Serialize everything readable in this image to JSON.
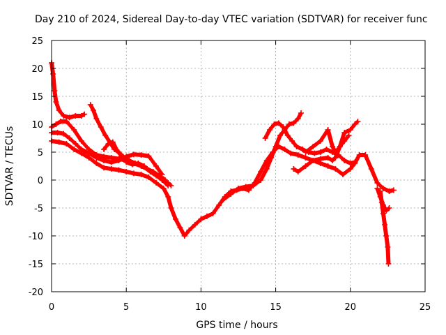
{
  "chart_data": {
    "type": "scatter",
    "title": "Day 210 of 2024, Sidereal Day-to-day VTEC variation (SDTVAR) for receiver func",
    "xlabel": "GPS time / hours",
    "ylabel": "SDTVAR / TECUs",
    "xlim": [
      0,
      25
    ],
    "ylim": [
      -20,
      25
    ],
    "xticks": [
      0,
      5,
      10,
      15,
      20,
      25
    ],
    "yticks": [
      -20,
      -15,
      -10,
      -5,
      0,
      5,
      10,
      15,
      20,
      25
    ],
    "grid": true,
    "marker": "+",
    "series": [
      {
        "name": "track-1",
        "color": "#ff0000",
        "x": [
          0.0,
          0.1,
          0.2,
          0.3,
          0.5,
          0.8,
          1.2,
          1.6,
          2.0,
          2.2
        ],
        "y": [
          21,
          19,
          16,
          14,
          12.5,
          11.5,
          11.2,
          11.5,
          11.5,
          11.8
        ]
      },
      {
        "name": "track-2",
        "color": "#ff0000",
        "x": [
          0.0,
          0.3,
          0.6,
          1.0,
          1.5,
          2.0,
          2.5,
          3.0,
          3.5,
          4.0,
          4.5,
          5.0,
          5.5,
          6.0,
          6.5,
          7.0,
          7.5,
          7.8
        ],
        "y": [
          9.5,
          10,
          10.5,
          10.5,
          9,
          7,
          5.5,
          4.5,
          4.2,
          4,
          3.8,
          3.5,
          3,
          2.5,
          1.8,
          1,
          0.2,
          -0.5
        ]
      },
      {
        "name": "track-3",
        "color": "#ff0000",
        "x": [
          0.0,
          0.4,
          0.8,
          1.2,
          1.6,
          2.0,
          2.5,
          3.0,
          3.5,
          4.0,
          4.5,
          5.0,
          5.5,
          6.0,
          6.5,
          7.0,
          7.4
        ],
        "y": [
          8.5,
          8.5,
          8.3,
          7.5,
          6.5,
          5.5,
          4.8,
          4,
          3.5,
          3.2,
          3.5,
          4.2,
          4.6,
          4.5,
          4.3,
          2.5,
          1
        ]
      },
      {
        "name": "track-4",
        "color": "#ff0000",
        "x": [
          0.0,
          0.5,
          1.0,
          1.5,
          2.0,
          2.5,
          3.0,
          3.5,
          4.0,
          4.5,
          5.0,
          5.5,
          6.0,
          6.5,
          7.0,
          7.5,
          7.8,
          8.0,
          8.3,
          8.6,
          8.9,
          9.2,
          9.6,
          10.0,
          10.4,
          10.8,
          11.2,
          11.6,
          12.0,
          12.4,
          12.8,
          13.2,
          13.6,
          14.0,
          14.4,
          14.8,
          15.2,
          15.6,
          16.0,
          16.5,
          17.0,
          17.5,
          18.0,
          18.5,
          19.0,
          19.5,
          20.0,
          20.3,
          20.6,
          21.0,
          21.4,
          21.8,
          22.2,
          22.6,
          22.9
        ],
        "y": [
          7,
          6.8,
          6.5,
          5.5,
          4.8,
          4,
          3,
          2.2,
          2,
          1.8,
          1.5,
          1.2,
          1,
          0.5,
          -0.5,
          -1.5,
          -3,
          -5,
          -7,
          -8.5,
          -10,
          -9,
          -8,
          -7,
          -6.5,
          -6,
          -4.5,
          -3,
          -2,
          -1.8,
          -1.5,
          -1.8,
          -0.5,
          1.5,
          3.5,
          5,
          6,
          5.5,
          4.8,
          4.5,
          4,
          3.5,
          3,
          2.5,
          2,
          1,
          2,
          3,
          4.5,
          4.5,
          2,
          -0.5,
          -1.5,
          -2,
          -1.8
        ]
      },
      {
        "name": "track-5",
        "color": "#ff0000",
        "x": [
          2.6,
          2.8,
          3.0,
          3.3,
          3.6,
          3.9,
          4.2,
          4.5,
          4.8,
          5.2,
          5.6,
          6.0,
          6.4,
          6.8,
          7.2,
          7.6,
          8.0
        ],
        "y": [
          13.5,
          12.5,
          11,
          9.5,
          8,
          6.8,
          5.5,
          5,
          4.2,
          3.5,
          3,
          2.5,
          2,
          1.5,
          0.8,
          0,
          -1
        ]
      },
      {
        "name": "track-6",
        "color": "#ff0000",
        "x": [
          3.5,
          3.8,
          4.1,
          4.4,
          4.7,
          5.0,
          5.4,
          5.8,
          6.2,
          6.6,
          7.0,
          7.4,
          7.8
        ],
        "y": [
          5.5,
          6.5,
          6.8,
          5.2,
          4.2,
          3.2,
          2.8,
          3,
          2.5,
          1.5,
          0.8,
          0,
          -1
        ]
      },
      {
        "name": "track-7",
        "color": "#ff0000",
        "x": [
          11.5,
          12.0,
          12.5,
          13.0,
          13.5,
          14.0,
          14.4,
          14.7,
          15.0,
          15.3,
          15.6,
          15.9,
          16.2,
          16.5,
          16.7
        ],
        "y": [
          -3.5,
          -2.5,
          -1.5,
          -1.2,
          -1,
          0,
          2,
          4,
          6,
          8,
          9,
          10,
          10.2,
          11,
          12
        ]
      },
      {
        "name": "track-8",
        "color": "#ff0000",
        "x": [
          14.3,
          14.6,
          14.9,
          15.2,
          15.5,
          15.8,
          16.1,
          16.4,
          16.8,
          17.2,
          17.6,
          18.0,
          18.4,
          18.8,
          19.2,
          19.6,
          20.0,
          20.3
        ],
        "y": [
          7.5,
          9,
          10,
          10.2,
          9.5,
          8,
          7,
          6,
          5.5,
          5,
          4.8,
          5,
          5.5,
          5,
          4.5,
          3.5,
          3,
          3.2
        ]
      },
      {
        "name": "track-9",
        "color": "#ff0000",
        "x": [
          16.2,
          16.5,
          17.0,
          17.5,
          18.0,
          18.5,
          18.8,
          19.0,
          19.3,
          19.6,
          20.0,
          20.3,
          20.5
        ],
        "y": [
          2,
          1.5,
          2.5,
          3.5,
          3.8,
          4,
          3.5,
          4,
          6,
          8.5,
          9,
          10,
          10.5
        ]
      },
      {
        "name": "track-10",
        "color": "#ff0000",
        "x": [
          17.0,
          17.5,
          18.0,
          18.5,
          18.8,
          19.0,
          19.3,
          19.6,
          19.9
        ],
        "y": [
          5,
          6,
          7,
          9,
          6,
          5,
          6,
          7,
          8
        ]
      },
      {
        "name": "track-11",
        "color": "#ff0000",
        "x": [
          22.0,
          22.1,
          22.2,
          22.3,
          22.4,
          22.5,
          22.55
        ],
        "y": [
          -2,
          -4,
          -6,
          -8,
          -10,
          -12,
          -15
        ]
      },
      {
        "name": "track-12",
        "color": "#ff0000",
        "x": [
          21.8,
          22.0,
          22.2,
          22.4,
          22.6
        ],
        "y": [
          -1.5,
          -3,
          -4.5,
          -5.5,
          -5
        ]
      }
    ]
  }
}
